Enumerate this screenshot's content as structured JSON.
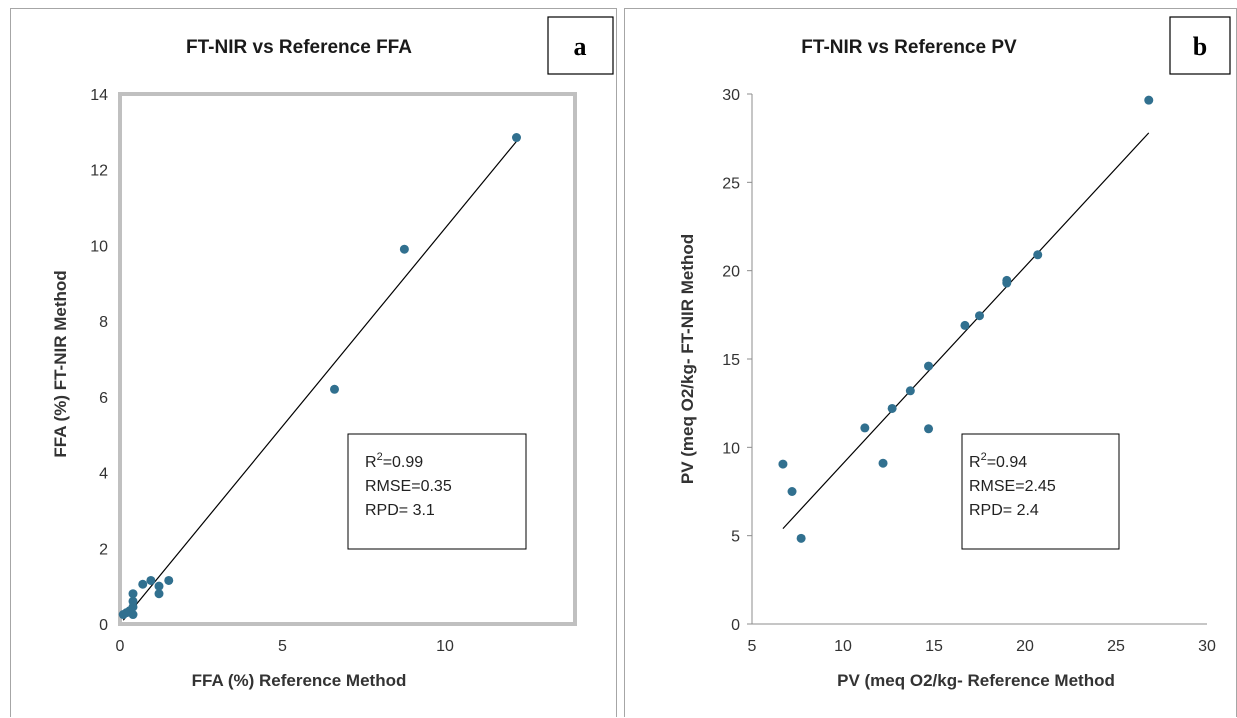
{
  "chart_data": [
    {
      "type": "scatter",
      "panel_letter": "a",
      "title": "FT-NIR vs Reference FFA",
      "xlabel": "FFA (%) Reference Method",
      "ylabel": "FFA (%) FT-NIR  Method",
      "xlim": [
        0,
        14
      ],
      "ylim": [
        0,
        14
      ],
      "xticks": [
        0,
        5,
        10
      ],
      "yticks": [
        0,
        2,
        4,
        6,
        8,
        10,
        12,
        14
      ],
      "grid": false,
      "points": [
        {
          "x": 0.1,
          "y": 0.25
        },
        {
          "x": 0.2,
          "y": 0.3
        },
        {
          "x": 0.3,
          "y": 0.35
        },
        {
          "x": 0.4,
          "y": 0.25
        },
        {
          "x": 0.4,
          "y": 0.45
        },
        {
          "x": 0.4,
          "y": 0.6
        },
        {
          "x": 0.4,
          "y": 0.8
        },
        {
          "x": 0.7,
          "y": 1.05
        },
        {
          "x": 0.95,
          "y": 1.15
        },
        {
          "x": 1.2,
          "y": 1.0
        },
        {
          "x": 1.2,
          "y": 0.8
        },
        {
          "x": 1.5,
          "y": 1.15
        },
        {
          "x": 6.6,
          "y": 6.2
        },
        {
          "x": 8.75,
          "y": 9.9
        },
        {
          "x": 12.2,
          "y": 12.85
        }
      ],
      "fit_line": {
        "x": [
          0.1,
          12.2
        ],
        "y": [
          0.1,
          12.75
        ]
      },
      "stats": {
        "r2_prefix": "R",
        "r2_sup": "2",
        "r2_value": "=0.99",
        "rmse": "RMSE=0.35",
        "rpd": "RPD= 3.1"
      }
    },
    {
      "type": "scatter",
      "panel_letter": "b",
      "title": "FT-NIR vs Reference PV",
      "xlabel": "PV (meq O2/kg- Reference Method",
      "ylabel": "PV (meq O2/kg- FT-NIR Method",
      "xlim": [
        5,
        30
      ],
      "ylim": [
        0,
        30
      ],
      "xticks": [
        5,
        10,
        15,
        20,
        25,
        30
      ],
      "yticks": [
        0,
        5,
        10,
        15,
        20,
        25,
        30
      ],
      "grid": false,
      "points": [
        {
          "x": 6.7,
          "y": 9.05
        },
        {
          "x": 7.2,
          "y": 7.5
        },
        {
          "x": 7.7,
          "y": 4.85
        },
        {
          "x": 11.2,
          "y": 11.1
        },
        {
          "x": 12.2,
          "y": 9.1
        },
        {
          "x": 12.7,
          "y": 12.2
        },
        {
          "x": 13.7,
          "y": 13.2
        },
        {
          "x": 14.7,
          "y": 14.6
        },
        {
          "x": 14.7,
          "y": 11.05
        },
        {
          "x": 16.7,
          "y": 16.9
        },
        {
          "x": 17.5,
          "y": 17.45
        },
        {
          "x": 19.0,
          "y": 19.3
        },
        {
          "x": 19.0,
          "y": 19.45
        },
        {
          "x": 20.7,
          "y": 20.9
        },
        {
          "x": 26.8,
          "y": 29.65
        }
      ],
      "fit_line": {
        "x": [
          6.7,
          26.8
        ],
        "y": [
          5.4,
          27.8
        ]
      },
      "stats": {
        "r2_prefix": "R",
        "r2_sup": "2",
        "r2_value": "=0.94",
        "rmse": "RMSE=2.45",
        "rpd": "RPD= 2.4"
      }
    }
  ],
  "colors": {
    "marker": "#31708f",
    "line": "#000000",
    "box": "#c0c0c0"
  }
}
